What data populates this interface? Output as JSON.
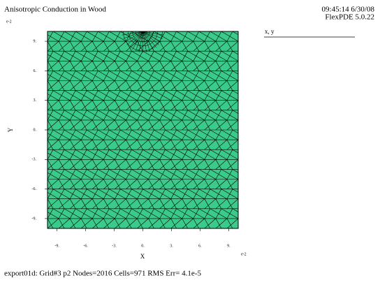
{
  "chart_data": {
    "type": "mesh",
    "title": "Anisotropic Conduction in Wood",
    "timestamp": "09:45:14 6/30/08",
    "software": "FlexPDE 5.0.22",
    "legend_label": "x, y",
    "x_label": "X",
    "y_label": "Y",
    "x_multiplier": "e-2",
    "y_multiplier": "e-2",
    "footer": "export01d:  Grid#3  p2  Nodes=2016 Cells=971 RMS Err= 4.1e-5",
    "color": "#3acb8a",
    "xlim": [
      -10,
      10
    ],
    "ylim": [
      -10,
      10
    ],
    "xticks": [
      {
        "value": -9,
        "label": "-9."
      },
      {
        "value": -6,
        "label": "-6."
      },
      {
        "value": -3,
        "label": "-3."
      },
      {
        "value": 0,
        "label": "0."
      },
      {
        "value": 3,
        "label": "3."
      },
      {
        "value": 6,
        "label": "6."
      },
      {
        "value": 9,
        "label": "9."
      }
    ],
    "yticks": [
      {
        "value": 9,
        "label": "9."
      },
      {
        "value": 6,
        "label": "6."
      },
      {
        "value": 3,
        "label": "3."
      },
      {
        "value": 0,
        "label": "0."
      },
      {
        "value": -3,
        "label": "-3."
      },
      {
        "value": -6,
        "label": "-6."
      },
      {
        "value": -9,
        "label": "-9."
      }
    ],
    "grid": false
  }
}
